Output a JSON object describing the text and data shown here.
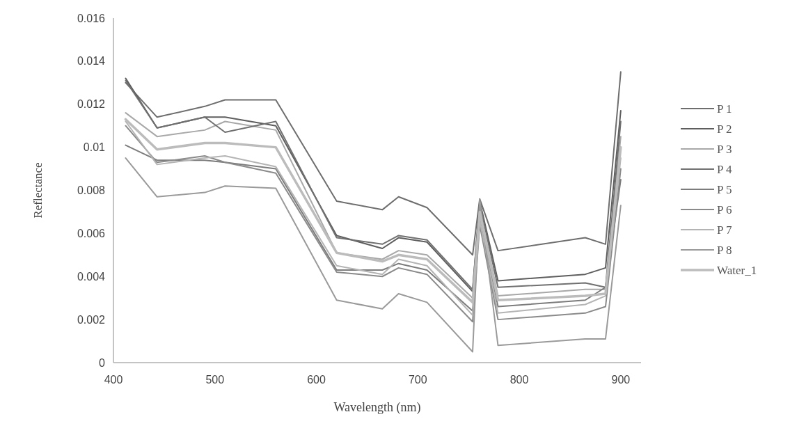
{
  "chart_data": {
    "type": "line",
    "xlabel": "Wavelength (nm)",
    "ylabel": "Reflectance",
    "x": [
      412,
      443,
      490,
      510,
      560,
      620,
      665,
      681,
      709,
      754,
      761,
      779,
      865,
      885,
      900
    ],
    "xlim": [
      400,
      920
    ],
    "xticks": [
      400,
      500,
      600,
      700,
      800,
      900
    ],
    "ylim": [
      0,
      0.016
    ],
    "yticks": [
      0,
      0.002,
      0.004,
      0.006,
      0.008,
      {
        "value": 0.01,
        "label": "0.01"
      },
      0.012,
      0.014,
      0.016
    ],
    "grid": false,
    "legend": "right",
    "marker": "none",
    "line_style": "solid",
    "series": [
      {
        "name": "P 1",
        "color": "#6e6e6e",
        "values": [
          0.013,
          0.0114,
          0.0119,
          0.0122,
          0.0122,
          0.0075,
          0.0071,
          0.0077,
          0.0072,
          0.005,
          0.0076,
          0.0052,
          0.0058,
          0.0055,
          0.0135
        ]
      },
      {
        "name": "P 2",
        "color": "#5e5e5e",
        "values": [
          0.0132,
          0.0109,
          0.0114,
          0.0114,
          0.011,
          0.0059,
          0.0053,
          0.0058,
          0.0056,
          0.0033,
          0.0075,
          0.0038,
          0.0041,
          0.0044,
          0.0117
        ]
      },
      {
        "name": "P 3",
        "color": "#a8a8a8",
        "values": [
          0.0116,
          0.0105,
          0.0108,
          0.0112,
          0.0108,
          0.0051,
          0.0048,
          0.0052,
          0.005,
          0.003,
          0.0071,
          0.0031,
          0.0034,
          0.0034,
          0.0105
        ]
      },
      {
        "name": "P 4",
        "color": "#707070",
        "values": [
          0.0131,
          0.0109,
          0.0114,
          0.0107,
          0.0112,
          0.0058,
          0.0055,
          0.0059,
          0.0057,
          0.0034,
          0.0074,
          0.0035,
          0.0037,
          0.0035,
          0.0112
        ]
      },
      {
        "name": "P 5",
        "color": "#7c7c7c",
        "values": [
          0.0101,
          0.0094,
          0.0094,
          0.0093,
          0.009,
          0.0043,
          0.0043,
          0.0046,
          0.0043,
          0.0024,
          0.0068,
          0.0026,
          0.0029,
          0.0035,
          0.0085
        ]
      },
      {
        "name": "P 6",
        "color": "#8a8a8a",
        "values": [
          0.011,
          0.0093,
          0.0096,
          0.0093,
          0.0088,
          0.0042,
          0.004,
          0.0044,
          0.0041,
          0.0019,
          0.0064,
          0.002,
          0.0023,
          0.0026,
          0.009
        ]
      },
      {
        "name": "P 7",
        "color": "#b4b4b4",
        "values": [
          0.0112,
          0.0092,
          0.0095,
          0.0096,
          0.0091,
          0.0045,
          0.0041,
          0.0048,
          0.0045,
          0.0022,
          0.0066,
          0.0023,
          0.0027,
          0.0031,
          0.0095
        ]
      },
      {
        "name": "P 8",
        "color": "#9a9a9a",
        "values": [
          0.0095,
          0.0077,
          0.0079,
          0.0082,
          0.0081,
          0.0029,
          0.0025,
          0.0032,
          0.0028,
          0.0005,
          0.0076,
          0.0008,
          0.0011,
          0.0011,
          0.0073
        ]
      },
      {
        "name": "Water_1",
        "color": "#bcbcbc",
        "values": [
          0.0113,
          0.0099,
          0.0102,
          0.0102,
          0.01,
          0.0051,
          0.0047,
          0.005,
          0.0048,
          0.0028,
          0.007,
          0.0029,
          0.0031,
          0.0032,
          0.01
        ]
      }
    ]
  }
}
